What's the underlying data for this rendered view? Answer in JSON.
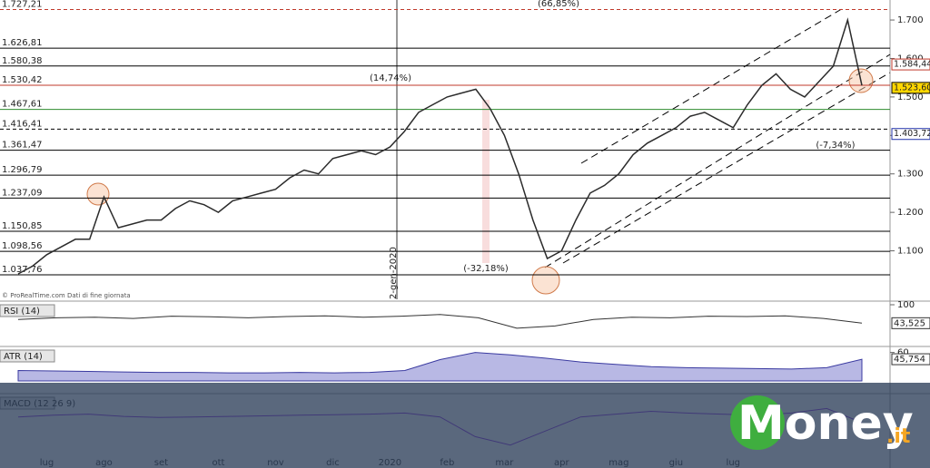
{
  "chart_data": [
    {
      "type": "line",
      "source": "© ProRealTime.com  Dati di fine giornata",
      "categories": [
        null,
        null,
        "lug",
        null,
        null,
        null,
        "ago",
        null,
        null,
        null,
        "set",
        null,
        null,
        null,
        "ott",
        null,
        null,
        null,
        "nov",
        null,
        null,
        null,
        "dic",
        null,
        null,
        null,
        "2020",
        null,
        null,
        null,
        "feb",
        null,
        null,
        null,
        "mar",
        null,
        null,
        null,
        "apr",
        null,
        null,
        null,
        "mag",
        null,
        null,
        null,
        "giu",
        null,
        null,
        null,
        "lug",
        null,
        null,
        null,
        null,
        null,
        null,
        null,
        null,
        null
      ],
      "series": [
        {
          "color": "#2b2b2b",
          "values": [
            1040,
            1060,
            1090,
            1110,
            1130,
            1130,
            1240,
            1160,
            1170,
            1180,
            1180,
            1210,
            1230,
            1220,
            1200,
            1230,
            1240,
            1250,
            1260,
            1290,
            1310,
            1300,
            1340,
            1350,
            1360,
            1350,
            1370,
            1410,
            1460,
            1480,
            1500,
            1510,
            1520,
            1470,
            1400,
            1300,
            1180,
            1080,
            1100,
            1180,
            1250,
            1270,
            1300,
            1350,
            1380,
            1400,
            1420,
            1450,
            1460,
            1440,
            1420,
            1480,
            1530,
            1560,
            1520,
            1500,
            1540,
            1580,
            1700,
            1530
          ]
        }
      ],
      "ylim": [
        974,
        1752
      ],
      "yticks": [
        {
          "value": 1100,
          "label": "1.100"
        },
        {
          "value": 1200,
          "label": "1.200"
        },
        {
          "value": 1300,
          "label": "1.300"
        },
        {
          "value": 1400,
          "label": "1.400"
        },
        {
          "value": 1500,
          "label": "1.500"
        },
        {
          "value": 1600,
          "label": "1.600"
        },
        {
          "value": 1700,
          "label": "1.700"
        }
      ],
      "levels": [
        {
          "value": 1727.21,
          "label": "1.727,21",
          "color": "#c0392b",
          "style": "dashed"
        },
        {
          "value": 1626.81,
          "label": "1.626,81",
          "color": "#000000",
          "style": "solid"
        },
        {
          "value": 1580.38,
          "label": "1.580,38",
          "color": "#000000",
          "style": "solid"
        },
        {
          "value": 1530.42,
          "label": "1.530,42",
          "color": "#c0392b",
          "style": "solid"
        },
        {
          "value": 1467.61,
          "label": "1.467,61",
          "color": "#2e8b2e",
          "style": "solid"
        },
        {
          "value": 1416.41,
          "label": "1.416,41",
          "color": "#000000",
          "style": "dashed"
        },
        {
          "value": 1361.47,
          "label": "1.361,47",
          "color": "#000000",
          "style": "solid"
        },
        {
          "value": 1296.79,
          "label": "1.296,79",
          "color": "#000000",
          "style": "solid"
        },
        {
          "value": 1237.09,
          "label": "1.237,09",
          "color": "#000000",
          "style": "solid"
        },
        {
          "value": 1150.85,
          "label": "1.150,85",
          "color": "#000000",
          "style": "solid"
        },
        {
          "value": 1098.56,
          "label": "1.098,56",
          "color": "#000000",
          "style": "solid"
        },
        {
          "value": 1037.76,
          "label": "1.037,76",
          "color": "#000000",
          "style": "solid"
        }
      ],
      "price_tags": [
        {
          "value": 1584.44,
          "label": "1.584,44",
          "color": "#c0392b",
          "background": "#ffffff"
        },
        {
          "value": 1523.6,
          "label": "1.523,60",
          "color": "#000000",
          "background": "#ffd700"
        },
        {
          "value": 1403.72,
          "label": "1.403,72",
          "color": "#2233aa",
          "background": "#ffffff"
        }
      ],
      "annotations": [
        "(66,85%)",
        "(14,74%)",
        "(-32,18%)",
        "(-7,34%)",
        "2-gen-2020"
      ]
    },
    {
      "type": "line",
      "title": "RSI (14)",
      "color": "#333333",
      "ylim": [
        0,
        100
      ],
      "yticks": [
        100
      ],
      "values": [
        55,
        60,
        62,
        58,
        65,
        63,
        60,
        64,
        66,
        62,
        65,
        70,
        60,
        28,
        35,
        55,
        62,
        60,
        65,
        64,
        66,
        58,
        43.525
      ],
      "last_value": {
        "value": 43.525,
        "label": "43,525"
      }
    },
    {
      "type": "area",
      "title": "ATR (14)",
      "color": "#3a3aa0",
      "ylim": [
        0,
        65
      ],
      "yticks": [
        60
      ],
      "values": [
        22,
        21,
        20,
        19,
        18,
        18,
        17,
        17,
        18,
        17,
        18,
        22,
        45,
        60,
        55,
        48,
        40,
        35,
        30,
        28,
        27,
        26,
        25,
        28,
        45.754
      ],
      "last_value": {
        "value": 45.754,
        "label": "45,754"
      }
    },
    {
      "type": "line",
      "title": "MACD (12 26 9)",
      "color": "#8a2be2",
      "ylim": [
        -60,
        40
      ],
      "values": [
        5,
        8,
        10,
        6,
        4,
        5,
        6,
        7,
        8,
        9,
        10,
        12,
        5,
        -30,
        -45,
        -20,
        5,
        10,
        15,
        12,
        10,
        8,
        12,
        20,
        -5
      ]
    }
  ],
  "brand": "Money",
  "brand_suffix": ".it"
}
